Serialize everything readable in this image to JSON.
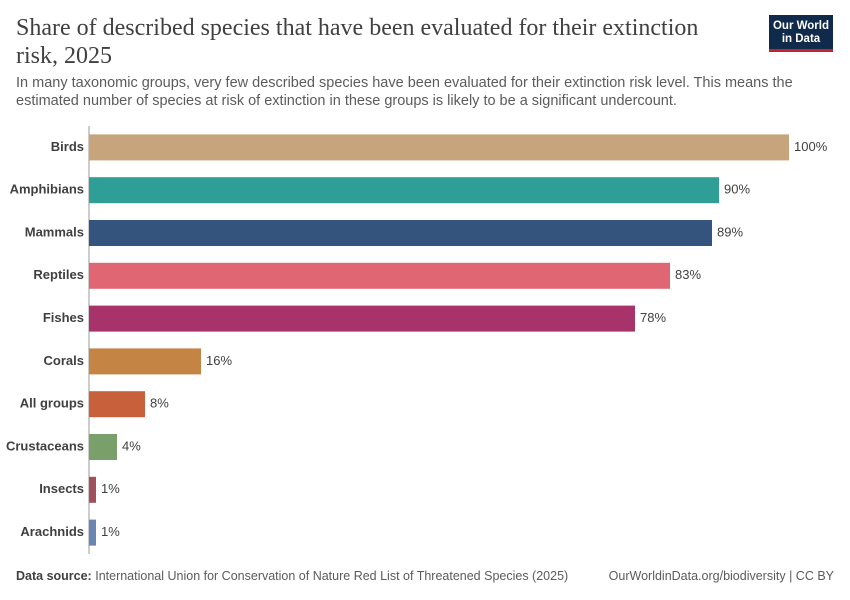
{
  "chart_data": {
    "type": "bar",
    "orientation": "horizontal",
    "title": "Share of described species that have been evaluated for their extinction risk, 2025",
    "subtitle": "In many taxonomic groups, very few described species have been evaluated for their extinction risk level. This means the estimated number of species at risk of extinction in these groups is likely to be a significant undercount.",
    "categories": [
      "Birds",
      "Amphibians",
      "Mammals",
      "Reptiles",
      "Fishes",
      "Corals",
      "All groups",
      "Crustaceans",
      "Insects",
      "Arachnids"
    ],
    "values": [
      100,
      90,
      89,
      83,
      78,
      16,
      8,
      4,
      1,
      1
    ],
    "value_labels": [
      "100%",
      "90%",
      "89%",
      "83%",
      "78%",
      "16%",
      "8%",
      "4%",
      "1%",
      "1%"
    ],
    "colors": [
      "#c8a47c",
      "#2e9e96",
      "#34547e",
      "#e06674",
      "#a8336b",
      "#c48544",
      "#c8603c",
      "#79a06a",
      "#a0505a",
      "#6b86b0"
    ],
    "source_label": "Data source:",
    "source": "International Union for Conservation of Nature Red List of Threatened Species (2025)",
    "url": "OurWorldinData.org/biodiversity | CC BY",
    "logo": [
      "Our World",
      "in Data"
    ]
  }
}
